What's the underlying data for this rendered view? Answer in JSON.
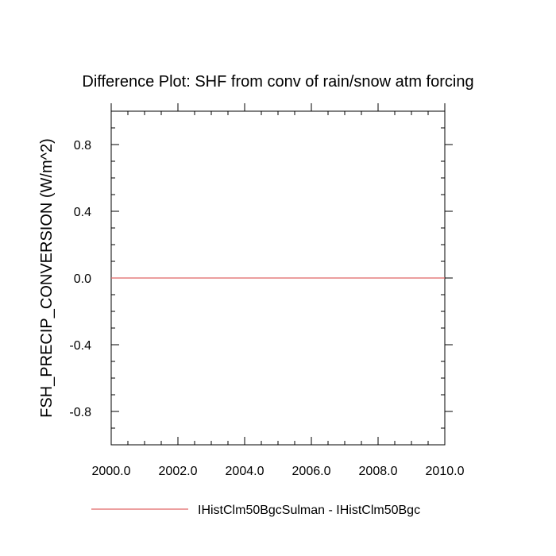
{
  "chart_data": {
    "type": "line",
    "title": "Difference Plot: SHF from conv of rain/snow atm forcing",
    "ylabel": "FSH_PRECIP_CONVERSION  (W/m^2)",
    "xlabel": "",
    "xlim": [
      2000.0,
      2010.0
    ],
    "ylim": [
      -1.0,
      1.0
    ],
    "x_ticks": [
      2000.0,
      2002.0,
      2004.0,
      2006.0,
      2008.0,
      2010.0
    ],
    "x_tick_labels": [
      "2000.0",
      "2002.0",
      "2004.0",
      "2006.0",
      "2008.0",
      "2010.0"
    ],
    "y_ticks": [
      0.8,
      0.4,
      0.0,
      -0.4,
      -0.8
    ],
    "y_tick_labels": [
      "0.8",
      "0.4",
      "0.0",
      "-0.4",
      "-0.8"
    ],
    "grid": false,
    "legend_position": "bottom",
    "series": [
      {
        "name": "IHistClm50BgcSulman - IHistClm50Bgc",
        "color": "#e06666",
        "x": [
          2000.0,
          2010.0
        ],
        "y": [
          0.0,
          0.0
        ]
      }
    ]
  }
}
